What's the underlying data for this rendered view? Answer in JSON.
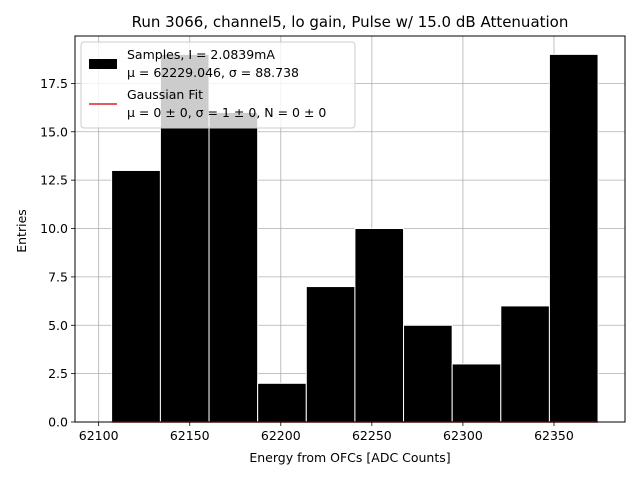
{
  "chart_data": {
    "type": "bar",
    "title": "Run 3066, channel5, lo gain, Pulse w/ 15.0 dB Attenuation",
    "xlabel": "Energy from OFCs [ADC Counts]",
    "ylabel": "Entries",
    "xlim": [
      62087,
      62389
    ],
    "ylim": [
      0,
      19.95
    ],
    "xticks": [
      62100,
      62150,
      62200,
      62250,
      62300,
      62350
    ],
    "yticks": [
      0.0,
      2.5,
      5.0,
      7.5,
      10.0,
      12.5,
      15.0,
      17.5
    ],
    "xtick_labels": [
      "62100",
      "62150",
      "62200",
      "62250",
      "62300",
      "62350"
    ],
    "ytick_labels": [
      "0.0",
      "2.5",
      "5.0",
      "7.5",
      "10.0",
      "12.5",
      "15.0",
      "17.5"
    ],
    "grid": true,
    "legend_position": "top-left",
    "bins": {
      "edges": [
        62107.1,
        62133.9,
        62160.6,
        62187.3,
        62214.0,
        62240.7,
        62267.4,
        62294.1,
        62320.8,
        62347.5,
        62374.2
      ],
      "counts": [
        13,
        19,
        16,
        2,
        7,
        10,
        5,
        3,
        6,
        19
      ]
    },
    "series": [
      {
        "name": "Samples, I = 2.0839mA",
        "stats": "μ = 62229.046, σ = 88.738",
        "color": "#000000"
      },
      {
        "name": "Gaussian Fit",
        "stats": "μ = 0 ± 0, σ = 1 ± 0, N = 0 ± 0",
        "color": "#d62728",
        "values": [
          0,
          0
        ]
      }
    ]
  }
}
